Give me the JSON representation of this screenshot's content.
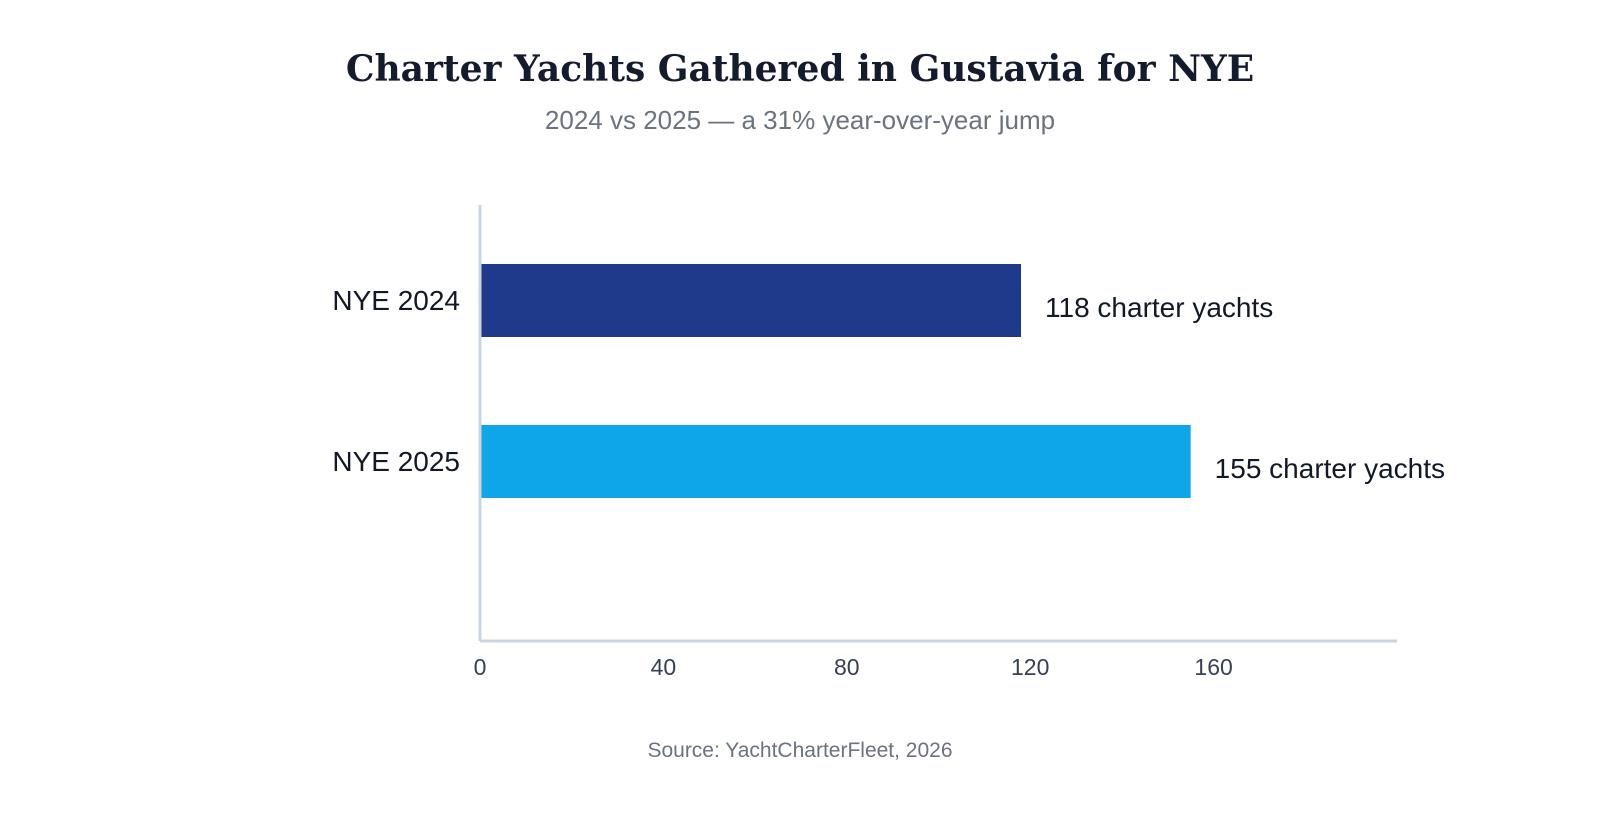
{
  "chart_data": {
    "type": "bar",
    "orientation": "horizontal",
    "title": "Charter Yachts Gathered in Gustavia for NYE",
    "subtitle": "2024 vs 2025 — a 31% year-over-year jump",
    "categories": [
      "NYE 2024",
      "NYE 2025"
    ],
    "values": [
      118,
      155
    ],
    "data_labels": [
      "118 charter yachts",
      "155 charter yachts"
    ],
    "colors": [
      "#1f3a8a",
      "#0ea5e9"
    ],
    "x_ticks": [
      0,
      40,
      80,
      120,
      160
    ],
    "x_tick_labels": [
      "0",
      "40",
      "80",
      "120",
      "160"
    ],
    "xlim": [
      0,
      200
    ],
    "grid": false,
    "legend": "none",
    "axis_color": "#cbd5e1",
    "source": "Source: YachtCharterFleet, 2026"
  }
}
